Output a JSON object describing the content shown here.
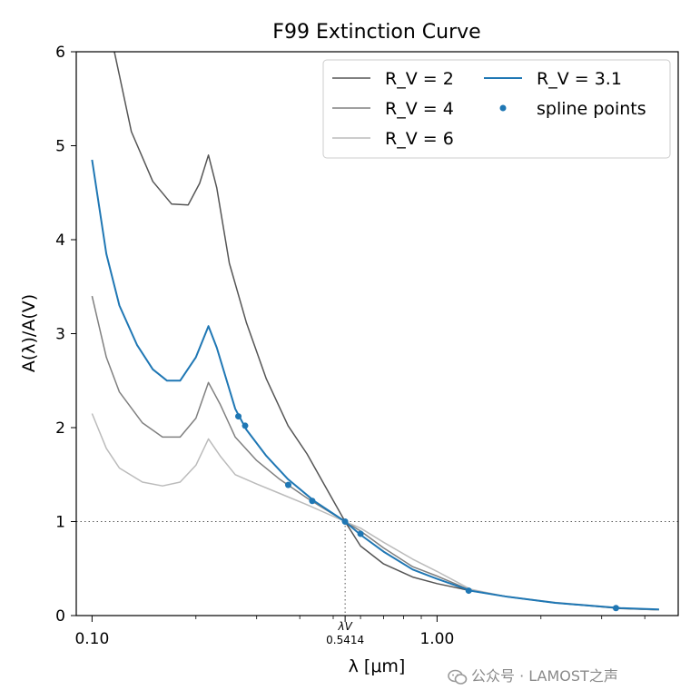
{
  "chart_data": {
    "type": "line",
    "title": "F99 Extinction Curve",
    "xlabel": "λ [μm]",
    "ylabel": "A(λ)/A(V)",
    "xscale": "log",
    "xlim": [
      0.09,
      5.0
    ],
    "ylim": [
      0,
      6
    ],
    "x_ticks": [
      {
        "value": 0.1,
        "label": "0.10"
      },
      {
        "value": 1.0,
        "label": "1.00"
      }
    ],
    "y_ticks": [
      {
        "value": 0,
        "label": "0"
      },
      {
        "value": 1,
        "label": "1"
      },
      {
        "value": 2,
        "label": "2"
      },
      {
        "value": 3,
        "label": "3"
      },
      {
        "value": 4,
        "label": "4"
      },
      {
        "value": 5,
        "label": "5"
      },
      {
        "value": 6,
        "label": "6"
      }
    ],
    "reference_lines": {
      "y": 1.0,
      "x": 0.5414
    },
    "annotation": {
      "label": "λV",
      "value_label": "0.5414"
    },
    "legend": {
      "placement": "top-right",
      "columns": 2
    },
    "series": [
      {
        "name": "R_V = 2",
        "color": "#555555",
        "points": [
          [
            0.11,
            6.4
          ],
          [
            0.12,
            5.75
          ],
          [
            0.13,
            5.15
          ],
          [
            0.15,
            4.62
          ],
          [
            0.17,
            4.38
          ],
          [
            0.19,
            4.37
          ],
          [
            0.205,
            4.6
          ],
          [
            0.2175,
            4.9
          ],
          [
            0.23,
            4.55
          ],
          [
            0.25,
            3.75
          ],
          [
            0.28,
            3.12
          ],
          [
            0.32,
            2.52
          ],
          [
            0.37,
            2.02
          ],
          [
            0.42,
            1.72
          ],
          [
            0.47,
            1.4
          ],
          [
            0.5414,
            1.0
          ],
          [
            0.6,
            0.74
          ],
          [
            0.7,
            0.55
          ],
          [
            0.85,
            0.41
          ],
          [
            1.0,
            0.34
          ],
          [
            1.25,
            0.265
          ],
          [
            1.6,
            0.2
          ],
          [
            2.2,
            0.135
          ],
          [
            3.4,
            0.075
          ],
          [
            4.4,
            0.06
          ]
        ]
      },
      {
        "name": "R_V = 4",
        "color": "#808080",
        "points": [
          [
            0.1,
            3.4
          ],
          [
            0.11,
            2.75
          ],
          [
            0.12,
            2.38
          ],
          [
            0.14,
            2.05
          ],
          [
            0.16,
            1.9
          ],
          [
            0.18,
            1.9
          ],
          [
            0.2,
            2.1
          ],
          [
            0.2175,
            2.48
          ],
          [
            0.235,
            2.25
          ],
          [
            0.26,
            1.9
          ],
          [
            0.3,
            1.65
          ],
          [
            0.35,
            1.45
          ],
          [
            0.42,
            1.25
          ],
          [
            0.5414,
            1.0
          ],
          [
            0.6,
            0.9
          ],
          [
            0.7,
            0.72
          ],
          [
            0.85,
            0.52
          ],
          [
            1.0,
            0.42
          ],
          [
            1.25,
            0.27
          ],
          [
            1.6,
            0.2
          ],
          [
            2.2,
            0.135
          ],
          [
            3.4,
            0.08
          ],
          [
            4.4,
            0.06
          ]
        ]
      },
      {
        "name": "R_V = 6",
        "color": "#bbbbbb",
        "points": [
          [
            0.1,
            2.15
          ],
          [
            0.11,
            1.78
          ],
          [
            0.12,
            1.57
          ],
          [
            0.14,
            1.42
          ],
          [
            0.16,
            1.38
          ],
          [
            0.18,
            1.42
          ],
          [
            0.2,
            1.6
          ],
          [
            0.2175,
            1.88
          ],
          [
            0.235,
            1.7
          ],
          [
            0.26,
            1.5
          ],
          [
            0.3,
            1.4
          ],
          [
            0.35,
            1.3
          ],
          [
            0.42,
            1.18
          ],
          [
            0.5414,
            1.0
          ],
          [
            0.6,
            0.93
          ],
          [
            0.7,
            0.78
          ],
          [
            0.85,
            0.6
          ],
          [
            1.0,
            0.47
          ],
          [
            1.25,
            0.28
          ],
          [
            1.6,
            0.2
          ],
          [
            2.2,
            0.14
          ],
          [
            3.4,
            0.08
          ],
          [
            4.4,
            0.06
          ]
        ]
      },
      {
        "name": "R_V = 3.1",
        "color": "#1f77b4",
        "points": [
          [
            0.1,
            4.85
          ],
          [
            0.11,
            3.85
          ],
          [
            0.12,
            3.3
          ],
          [
            0.135,
            2.88
          ],
          [
            0.15,
            2.62
          ],
          [
            0.165,
            2.5
          ],
          [
            0.18,
            2.5
          ],
          [
            0.2,
            2.75
          ],
          [
            0.2175,
            3.08
          ],
          [
            0.23,
            2.85
          ],
          [
            0.26,
            2.2
          ],
          [
            0.28,
            1.98
          ],
          [
            0.32,
            1.7
          ],
          [
            0.37,
            1.45
          ],
          [
            0.44,
            1.22
          ],
          [
            0.5414,
            1.0
          ],
          [
            0.6,
            0.86
          ],
          [
            0.7,
            0.68
          ],
          [
            0.85,
            0.49
          ],
          [
            1.0,
            0.39
          ],
          [
            1.25,
            0.265
          ],
          [
            1.6,
            0.2
          ],
          [
            2.2,
            0.135
          ],
          [
            3.4,
            0.08
          ],
          [
            4.4,
            0.065
          ]
        ]
      }
    ],
    "spline_points": {
      "name": "spline points",
      "color": "#1f77b4",
      "points": [
        [
          0.2655,
          2.12
        ],
        [
          0.2778,
          2.02
        ],
        [
          0.3704,
          1.39
        ],
        [
          0.4348,
          1.22
        ],
        [
          0.5414,
          1.0
        ],
        [
          0.6,
          0.87
        ],
        [
          1.235,
          0.265
        ],
        [
          3.3,
          0.08
        ]
      ]
    }
  },
  "legend_labels": {
    "rv2": "R_V = 2",
    "rv4": "R_V = 4",
    "rv6": "R_V = 6",
    "rv31": "R_V = 3.1",
    "spline": "spline points"
  },
  "watermark": "公众号 · LAMOST之声"
}
